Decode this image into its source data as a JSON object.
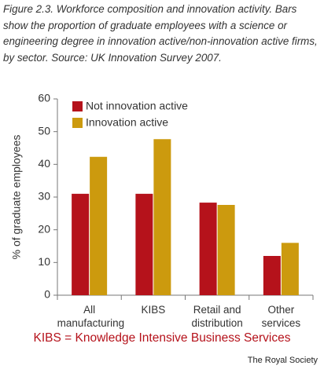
{
  "chart_data": {
    "type": "bar",
    "title": "Figure 2.3.  Workforce composition and innovation activity. Bars show the proportion of graduate employees with a science or engineering degree in innovation active/non-innovation active firms, by sector. Source: UK Innovation Survey 2007.",
    "y_label": "% of graduate employees",
    "categories": [
      "All manufacturing",
      "KIBS",
      "Retail and distribution",
      "Other services"
    ],
    "series": [
      {
        "name": "Not innovation active",
        "color": "#b5121b",
        "values": [
          31,
          31,
          28.3,
          12
        ]
      },
      {
        "name": "Innovation active",
        "color": "#cc9a0e",
        "values": [
          42.3,
          47.7,
          27.6,
          16
        ]
      }
    ],
    "ylim": [
      0,
      60
    ],
    "yticks": [
      0,
      10,
      20,
      30,
      40,
      50,
      60
    ],
    "legend": "upper left",
    "annotations": [
      "KIBS = Knowledge Intensive Business Services",
      "The Royal Society"
    ]
  }
}
